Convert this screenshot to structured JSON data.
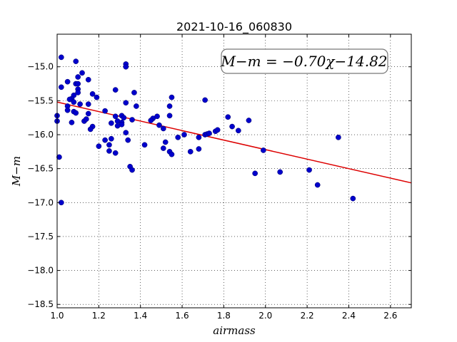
{
  "chart_data": {
    "type": "scatter",
    "title": "2021-10-16_060830",
    "xlabel": "airmass",
    "ylabel": "M−m",
    "xlim": [
      1.0,
      2.7
    ],
    "ylim": [
      -18.55,
      -14.52
    ],
    "y_inverted": true,
    "grid": true,
    "x_ticks": [
      1.0,
      1.2,
      1.4,
      1.6,
      1.8,
      2.0,
      2.2,
      2.4,
      2.6
    ],
    "x_tick_labels": [
      "1.0",
      "1.2",
      "1.4",
      "1.6",
      "1.8",
      "2.0",
      "2.2",
      "2.4",
      "2.6"
    ],
    "y_ticks": [
      -15.0,
      -15.5,
      -16.0,
      -16.5,
      -17.0,
      -17.5,
      -18.0,
      -18.5
    ],
    "y_tick_labels": [
      "−15.0",
      "−15.5",
      "−16.0",
      "−16.5",
      "−17.0",
      "−17.5",
      "−18.0",
      "−18.5"
    ],
    "points_color": "#0000cc",
    "fit_color": "#dd0000",
    "annotation": "M−m = −0.70χ−14.82",
    "fit": {
      "slope": -0.7,
      "intercept": -14.82
    },
    "points": [
      [
        1.02,
        -14.86
      ],
      [
        1.09,
        -14.92
      ],
      [
        1.33,
        -14.96
      ],
      [
        1.33,
        -15.0
      ],
      [
        1.12,
        -15.09
      ],
      [
        1.1,
        -15.15
      ],
      [
        1.05,
        -15.22
      ],
      [
        1.15,
        -15.19
      ],
      [
        1.02,
        -15.3
      ],
      [
        1.09,
        -15.25
      ],
      [
        1.1,
        -15.25
      ],
      [
        1.1,
        -15.33
      ],
      [
        1.1,
        -15.38
      ],
      [
        1.28,
        -15.34
      ],
      [
        1.37,
        -15.38
      ],
      [
        1.17,
        -15.4
      ],
      [
        1.08,
        -15.42
      ],
      [
        1.19,
        -15.45
      ],
      [
        1.07,
        -15.47
      ],
      [
        1.06,
        -15.48
      ],
      [
        1.08,
        -15.52
      ],
      [
        1.05,
        -15.58
      ],
      [
        1.11,
        -15.55
      ],
      [
        1.15,
        -15.55
      ],
      [
        1.33,
        -15.53
      ],
      [
        1.55,
        -15.45
      ],
      [
        1.71,
        -15.49
      ],
      [
        1.05,
        -15.64
      ],
      [
        1.08,
        -15.66
      ],
      [
        1.15,
        -15.69
      ],
      [
        1.23,
        -15.65
      ],
      [
        1.38,
        -15.58
      ],
      [
        1.54,
        -15.58
      ],
      [
        1.0,
        -15.72
      ],
      [
        1.0,
        -15.8
      ],
      [
        1.09,
        -15.68
      ],
      [
        1.13,
        -15.8
      ],
      [
        1.28,
        -15.73
      ],
      [
        1.31,
        -15.72
      ],
      [
        1.32,
        -15.75
      ],
      [
        1.46,
        -15.76
      ],
      [
        1.48,
        -15.73
      ],
      [
        1.54,
        -15.72
      ],
      [
        1.14,
        -15.77
      ],
      [
        1.07,
        -15.82
      ],
      [
        1.26,
        -15.83
      ],
      [
        1.29,
        -15.8
      ],
      [
        1.31,
        -15.82
      ],
      [
        1.31,
        -15.85
      ],
      [
        1.36,
        -15.78
      ],
      [
        1.45,
        -15.79
      ],
      [
        1.49,
        -15.86
      ],
      [
        1.51,
        -15.91
      ],
      [
        1.17,
        -15.88
      ],
      [
        1.16,
        -15.92
      ],
      [
        1.29,
        -15.87
      ],
      [
        1.33,
        -15.97
      ],
      [
        1.71,
        -16.0
      ],
      [
        1.72,
        -15.99
      ],
      [
        1.73,
        -15.98
      ],
      [
        1.76,
        -15.95
      ],
      [
        1.77,
        -15.93
      ],
      [
        1.82,
        -15.74
      ],
      [
        1.84,
        -15.88
      ],
      [
        1.87,
        -15.94
      ],
      [
        1.92,
        -15.79
      ],
      [
        1.58,
        -16.04
      ],
      [
        1.61,
        -16.0
      ],
      [
        1.68,
        -16.04
      ],
      [
        1.26,
        -16.06
      ],
      [
        1.23,
        -16.08
      ],
      [
        1.34,
        -16.08
      ],
      [
        1.2,
        -16.17
      ],
      [
        1.25,
        -16.15
      ],
      [
        1.42,
        -16.15
      ],
      [
        1.52,
        -16.11
      ],
      [
        1.51,
        -16.2
      ],
      [
        1.25,
        -16.24
      ],
      [
        1.28,
        -16.27
      ],
      [
        1.54,
        -16.25
      ],
      [
        1.55,
        -16.29
      ],
      [
        1.64,
        -16.25
      ],
      [
        1.68,
        -16.21
      ],
      [
        1.99,
        -16.23
      ],
      [
        1.01,
        -16.33
      ],
      [
        1.35,
        -16.47
      ],
      [
        1.36,
        -16.52
      ],
      [
        1.95,
        -16.57
      ],
      [
        2.07,
        -16.55
      ],
      [
        2.21,
        -16.52
      ],
      [
        2.25,
        -16.74
      ],
      [
        2.35,
        -16.04
      ],
      [
        2.42,
        -16.94
      ],
      [
        1.02,
        -17.0
      ]
    ]
  }
}
